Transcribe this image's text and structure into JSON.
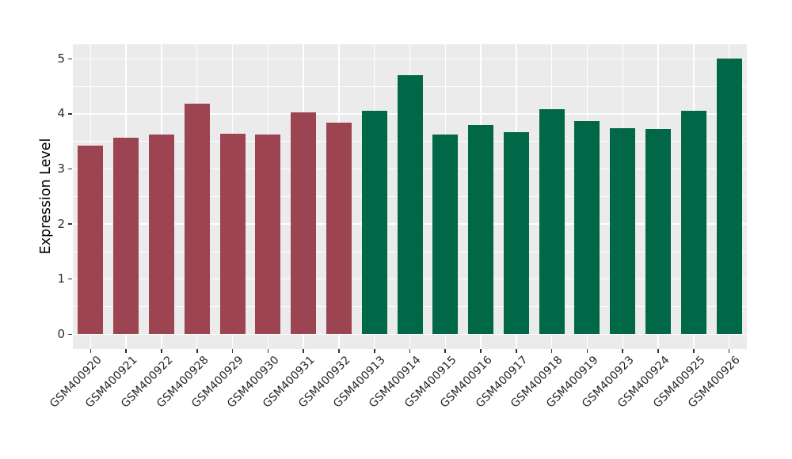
{
  "chart_data": {
    "type": "bar",
    "title": "",
    "xlabel": "",
    "ylabel": "Expression Level",
    "categories": [
      "GSM400920",
      "GSM400921",
      "GSM400922",
      "GSM400928",
      "GSM400929",
      "GSM400930",
      "GSM400931",
      "GSM400932",
      "GSM400913",
      "GSM400914",
      "GSM400915",
      "GSM400916",
      "GSM400917",
      "GSM400918",
      "GSM400919",
      "GSM400923",
      "GSM400924",
      "GSM400925",
      "GSM400926"
    ],
    "values": [
      3.43,
      3.57,
      3.63,
      4.18,
      3.64,
      3.63,
      4.03,
      3.84,
      4.05,
      4.7,
      3.63,
      3.8,
      3.67,
      4.09,
      3.87,
      3.74,
      3.73,
      4.05,
      5.01
    ],
    "bar_colors": [
      "#9C4451",
      "#9C4451",
      "#9C4451",
      "#9C4451",
      "#9C4451",
      "#9C4451",
      "#9C4451",
      "#9C4451",
      "#006747",
      "#006747",
      "#006747",
      "#006747",
      "#006747",
      "#006747",
      "#006747",
      "#006747",
      "#006747",
      "#006747",
      "#006747"
    ],
    "ytick_labels": [
      "0",
      "1",
      "2",
      "3",
      "4",
      "5"
    ],
    "yticks": [
      0,
      1,
      2,
      3,
      4,
      5
    ],
    "y_minor_ticks": [
      0.5,
      1.5,
      2.5,
      3.5,
      4.5
    ],
    "ylim": [
      0,
      5
    ],
    "panel_background": "#EBEBEB",
    "gridline_color": "#FFFFFF",
    "grid": "major and minor horizontal white lines; vertical white line at each bar center",
    "legend_position": "none"
  }
}
